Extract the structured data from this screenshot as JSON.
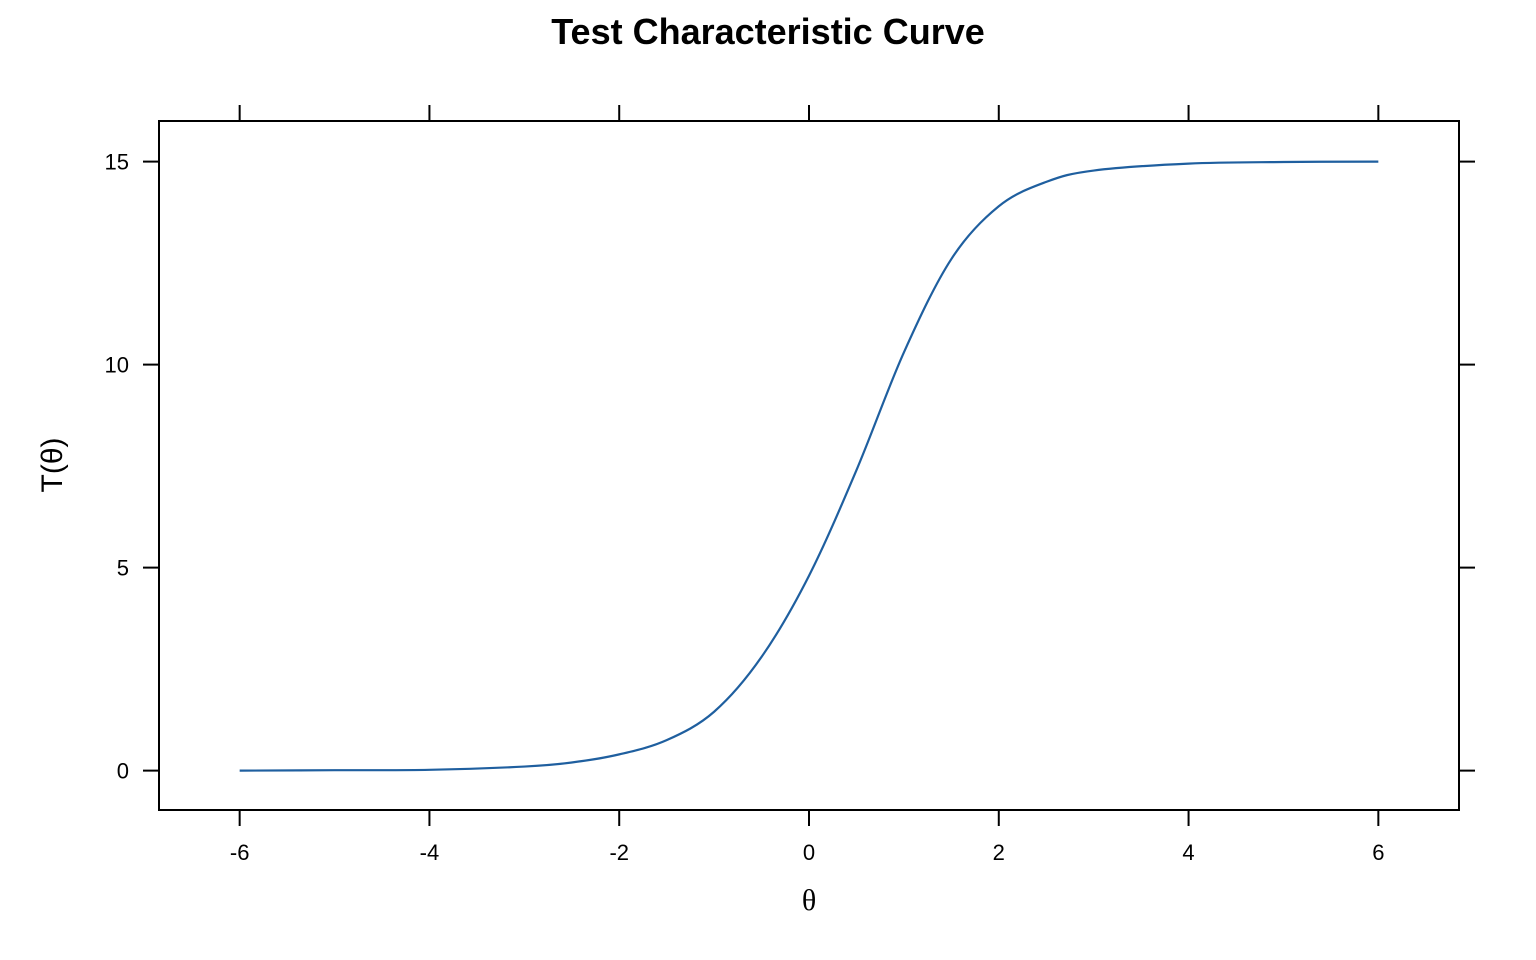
{
  "chart_data": {
    "type": "line",
    "title": "Test Characteristic Curve",
    "xlabel": "θ",
    "ylabel": "T(θ)",
    "xlim": [
      -6.85,
      6.85
    ],
    "ylim": [
      -0.97,
      16.0
    ],
    "x_ticks": [
      -6,
      -4,
      -2,
      0,
      2,
      4,
      6
    ],
    "y_ticks": [
      0,
      5,
      10,
      15
    ],
    "grid": false,
    "line_color": "#1f5f9f",
    "series": [
      {
        "x": [
          -6,
          -5,
          -4,
          -3,
          -2.5,
          -2,
          -1.5,
          -1,
          -0.5,
          0,
          0.5,
          1,
          1.5,
          2,
          2.5,
          3,
          4,
          5,
          6
        ],
        "y": [
          0.0,
          0.01,
          0.02,
          0.1,
          0.2,
          0.4,
          0.75,
          1.45,
          2.8,
          4.8,
          7.4,
          10.3,
          12.6,
          13.9,
          14.5,
          14.78,
          14.95,
          14.99,
          15.0
        ]
      }
    ]
  }
}
